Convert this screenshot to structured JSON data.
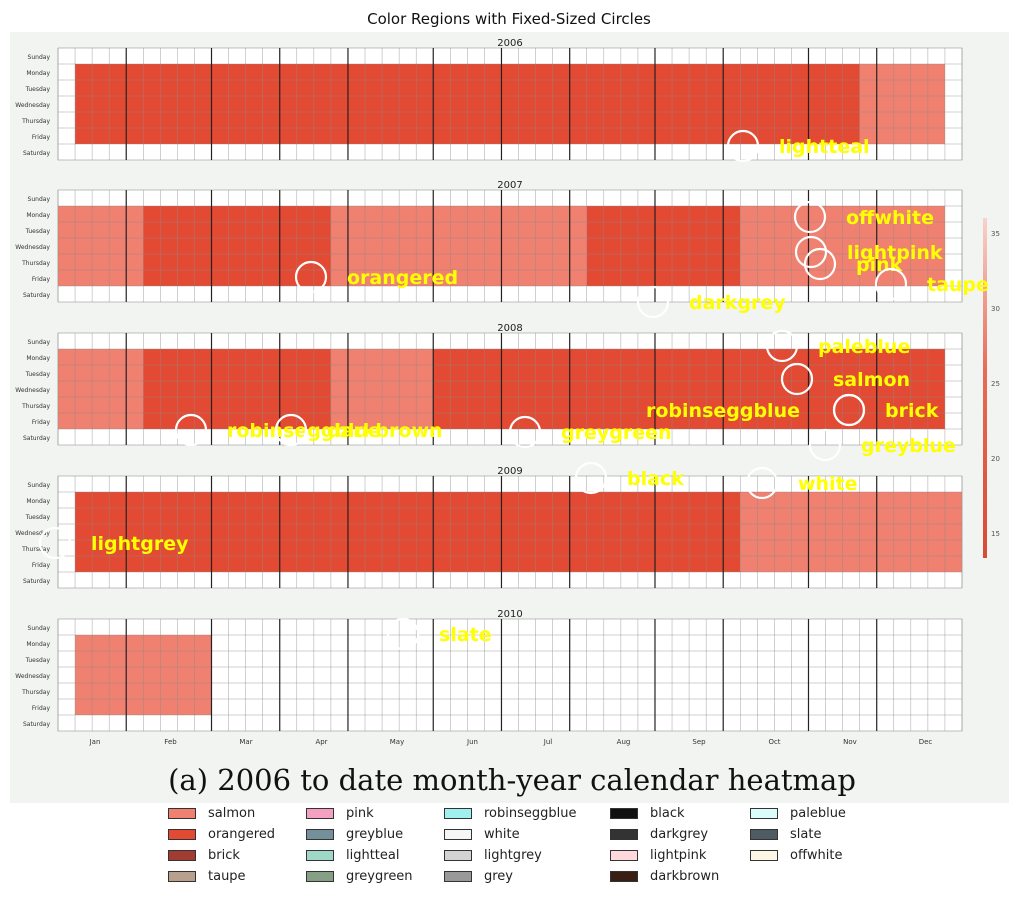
{
  "chart_data": {
    "type": "heatmap",
    "title": "Color Regions with Fixed-Sized Circles",
    "caption": "(a) 2006 to date month-year calendar heatmap",
    "years": [
      "2006",
      "2007",
      "2008",
      "2009",
      "2010"
    ],
    "weekdays": [
      "Sunday",
      "Monday",
      "Tuesday",
      "Wednesday",
      "Thursday",
      "Friday",
      "Saturday"
    ],
    "months": [
      "Jan",
      "Feb",
      "Mar",
      "Apr",
      "May",
      "Jun",
      "Jul",
      "Aug",
      "Sep",
      "Oct",
      "Nov",
      "Dec"
    ],
    "colorbar_ticks": [
      "35",
      "30",
      "25",
      "20",
      "15"
    ],
    "color_regions": [
      {
        "label": "lightteal"
      },
      {
        "label": "offwhite"
      },
      {
        "label": "lightpink"
      },
      {
        "label": "pink"
      },
      {
        "label": "orangered"
      },
      {
        "label": "taupe"
      },
      {
        "label": "darkgrey"
      },
      {
        "label": "paleblue"
      },
      {
        "label": "salmon"
      },
      {
        "label": "brick"
      },
      {
        "label": "robinseggblue"
      },
      {
        "label": "darkbrown"
      },
      {
        "label": "greygreen"
      },
      {
        "label": "greyblue"
      },
      {
        "label": "black"
      },
      {
        "label": "white"
      },
      {
        "label": "lightgrey"
      },
      {
        "label": "slate"
      },
      {
        "label": "grey"
      }
    ],
    "legend": [
      {
        "label": "salmon",
        "color": "#f08070"
      },
      {
        "label": "orangered",
        "color": "#e34a33"
      },
      {
        "label": "brick",
        "color": "#a03c32"
      },
      {
        "label": "taupe",
        "color": "#b9a08c"
      },
      {
        "label": "pink",
        "color": "#f5a0c0"
      },
      {
        "label": "greyblue",
        "color": "#75909a"
      },
      {
        "label": "lightteal",
        "color": "#a0d8c8"
      },
      {
        "label": "greygreen",
        "color": "#86a085"
      },
      {
        "label": "robinseggblue",
        "color": "#9ff0ee"
      },
      {
        "label": "white",
        "color": "#f6f6f6"
      },
      {
        "label": "lightgrey",
        "color": "#d3d3d3"
      },
      {
        "label": "grey",
        "color": "#999999"
      },
      {
        "label": "black",
        "color": "#111111"
      },
      {
        "label": "darkgrey",
        "color": "#333333"
      },
      {
        "label": "lightpink",
        "color": "#ffd9dc"
      },
      {
        "label": "darkbrown",
        "color": "#3a1e14"
      },
      {
        "label": "paleblue",
        "color": "#dafdfc"
      },
      {
        "label": "slate",
        "color": "#4f5b62"
      },
      {
        "label": "offwhite",
        "color": "#fcf7e4"
      }
    ],
    "colors": {
      "background": "#f1f4f1",
      "label_text": "#ffff00",
      "circle_stroke": "#ffffff"
    }
  }
}
